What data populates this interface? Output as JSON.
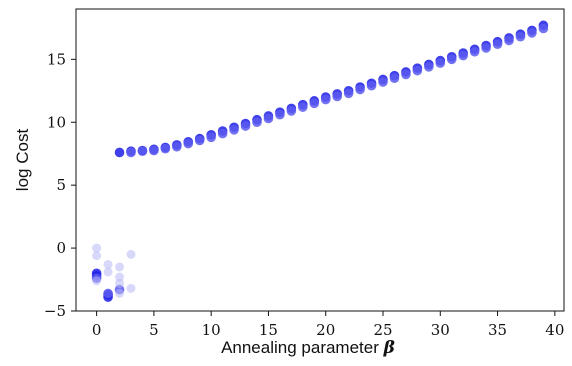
{
  "chart_data": {
    "type": "scatter",
    "title": "",
    "xlabel": "Annealing parameter",
    "xlabel_symbol": "β",
    "ylabel": "log Cost",
    "xlim": [
      -1.8,
      40.8
    ],
    "ylim": [
      -5,
      19
    ],
    "xticks": [
      "0",
      "5",
      "10",
      "15",
      "20",
      "25",
      "30",
      "35",
      "40"
    ],
    "yticks": [
      "−5",
      "0",
      "5",
      "10",
      "15"
    ],
    "grid": false,
    "legend": "none",
    "colors": {
      "strong": "#1f1fe6",
      "medium": "#5c5cf0",
      "light": "#b8b8f5"
    },
    "series": [
      {
        "color_key": "strong",
        "points": [
          [
            0,
            -2.0
          ],
          [
            0,
            -2.2
          ],
          [
            1,
            -3.7
          ],
          [
            1,
            -3.9
          ],
          [
            2,
            7.6
          ],
          [
            3,
            7.7
          ],
          [
            4,
            7.75
          ],
          [
            5,
            7.85
          ],
          [
            6,
            8.0
          ],
          [
            7,
            8.2
          ],
          [
            8,
            8.45
          ],
          [
            9,
            8.7
          ],
          [
            10,
            9.0
          ],
          [
            11,
            9.3
          ],
          [
            12,
            9.6
          ],
          [
            13,
            9.9
          ],
          [
            14,
            10.2
          ],
          [
            15,
            10.5
          ],
          [
            16,
            10.8
          ],
          [
            17,
            11.1
          ],
          [
            18,
            11.4
          ],
          [
            19,
            11.7
          ],
          [
            20,
            12.0
          ],
          [
            21,
            12.25
          ],
          [
            22,
            12.5
          ],
          [
            23,
            12.8
          ],
          [
            24,
            13.1
          ],
          [
            25,
            13.4
          ],
          [
            26,
            13.7
          ],
          [
            27,
            14.0
          ],
          [
            28,
            14.3
          ],
          [
            29,
            14.6
          ],
          [
            30,
            14.9
          ],
          [
            31,
            15.2
          ],
          [
            32,
            15.5
          ],
          [
            33,
            15.8
          ],
          [
            34,
            16.1
          ],
          [
            35,
            16.4
          ],
          [
            36,
            16.7
          ],
          [
            37,
            17.0
          ],
          [
            38,
            17.3
          ],
          [
            39,
            17.7
          ]
        ]
      },
      {
        "color_key": "medium",
        "points": [
          [
            0,
            -2.4
          ],
          [
            1,
            -3.6
          ],
          [
            2,
            -3.3
          ],
          [
            3,
            7.6
          ],
          [
            4,
            7.7
          ],
          [
            5,
            7.75
          ],
          [
            6,
            7.9
          ],
          [
            7,
            8.05
          ],
          [
            8,
            8.3
          ],
          [
            9,
            8.55
          ],
          [
            10,
            8.8
          ],
          [
            11,
            9.1
          ],
          [
            12,
            9.4
          ],
          [
            13,
            9.7
          ],
          [
            14,
            10.0
          ],
          [
            15,
            10.3
          ],
          [
            16,
            10.6
          ],
          [
            17,
            10.9
          ],
          [
            18,
            11.2
          ],
          [
            19,
            11.5
          ],
          [
            20,
            11.8
          ],
          [
            21,
            12.05
          ],
          [
            22,
            12.3
          ],
          [
            23,
            12.6
          ],
          [
            24,
            12.9
          ],
          [
            25,
            13.2
          ],
          [
            26,
            13.5
          ],
          [
            27,
            13.8
          ],
          [
            28,
            14.1
          ],
          [
            29,
            14.4
          ],
          [
            30,
            14.7
          ],
          [
            31,
            15.0
          ],
          [
            32,
            15.3
          ],
          [
            33,
            15.6
          ],
          [
            34,
            15.9
          ],
          [
            35,
            16.2
          ],
          [
            36,
            16.5
          ],
          [
            37,
            16.8
          ],
          [
            38,
            17.1
          ],
          [
            39,
            17.45
          ]
        ]
      },
      {
        "color_key": "light",
        "points": [
          [
            0,
            0.0
          ],
          [
            0,
            -0.6
          ],
          [
            0,
            -2.6
          ],
          [
            1,
            -1.3
          ],
          [
            1,
            -1.9
          ],
          [
            2,
            -1.5
          ],
          [
            2,
            -2.3
          ],
          [
            2,
            -2.8
          ],
          [
            2,
            -3.6
          ],
          [
            3,
            -0.5
          ],
          [
            3,
            -3.2
          ]
        ]
      }
    ]
  }
}
